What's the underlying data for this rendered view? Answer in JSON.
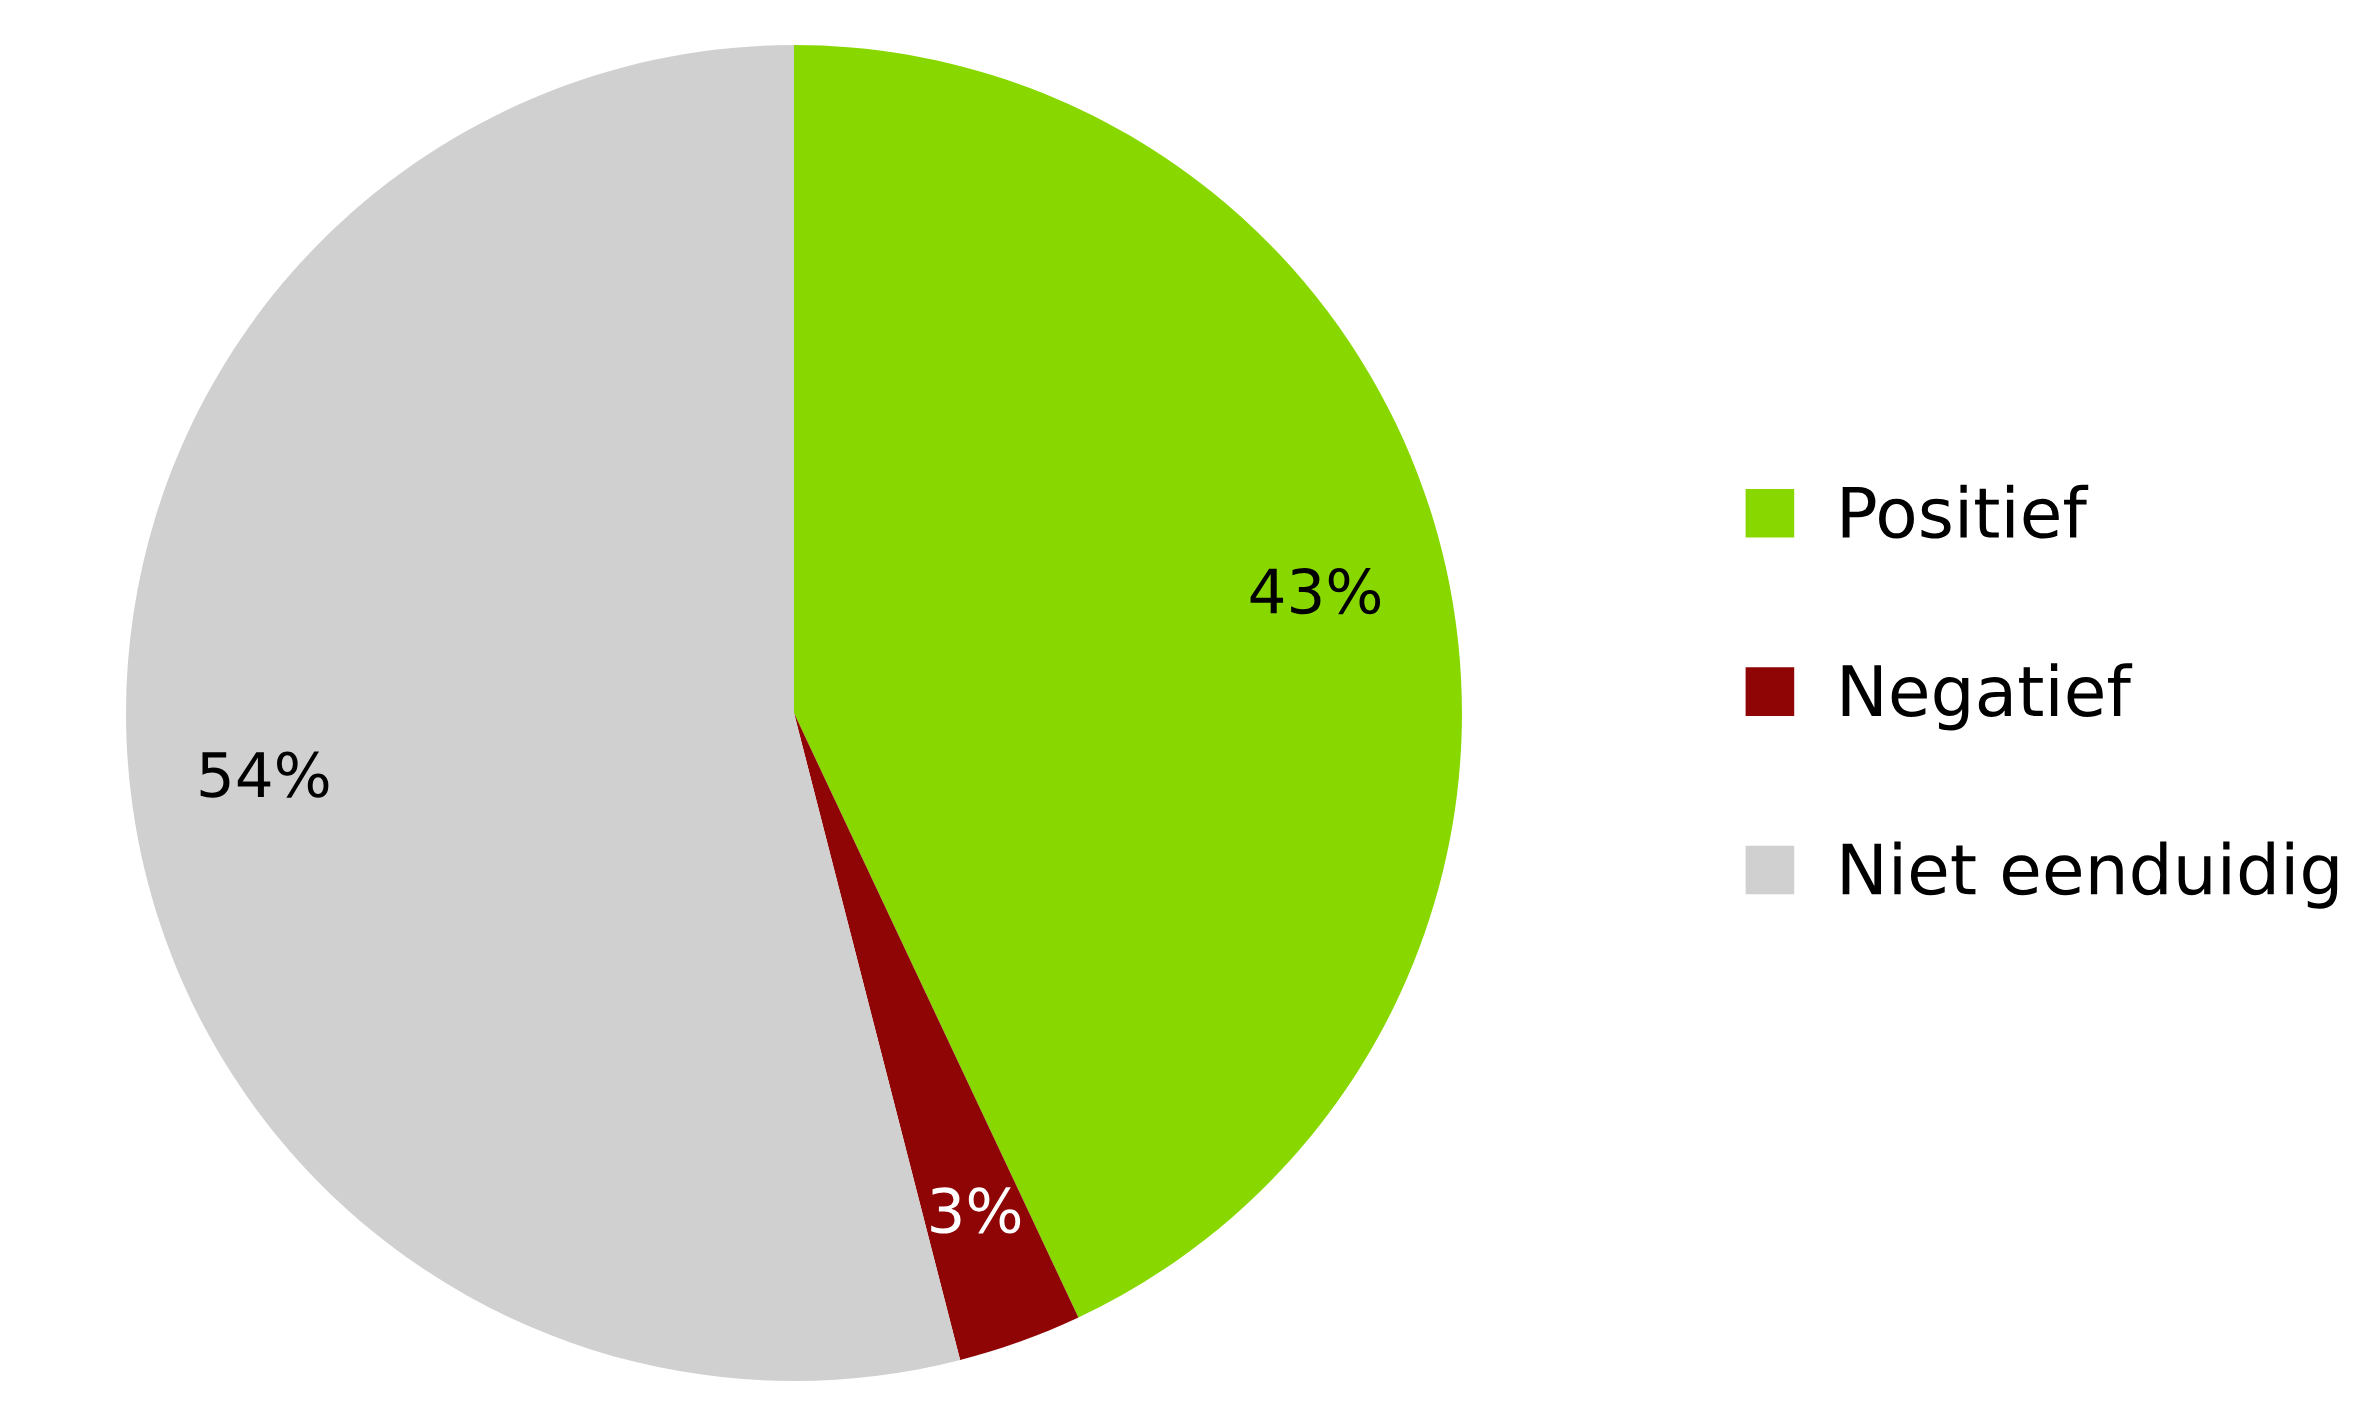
{
  "chart_data": {
    "type": "pie",
    "categories": [
      "Positief",
      "Negatief",
      "Niet eenduidig"
    ],
    "values": [
      43,
      3,
      54
    ],
    "colors": [
      "#88d800",
      "#8f0505",
      "#d0d0d0"
    ],
    "value_labels": [
      "43%",
      "3%",
      "54%"
    ],
    "legend": "right"
  }
}
